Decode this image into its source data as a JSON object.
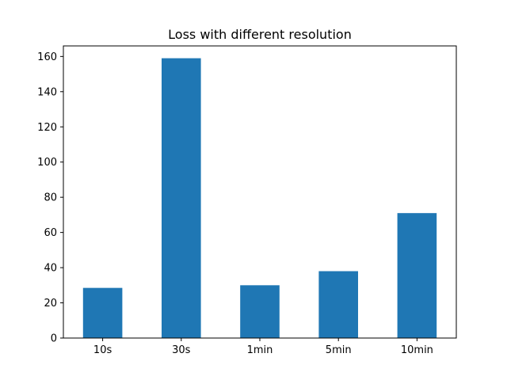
{
  "chart_data": {
    "type": "bar",
    "title": "Loss with different resolution",
    "categories": [
      "10s",
      "30s",
      "1min",
      "5min",
      "10min"
    ],
    "values": [
      28.5,
      159,
      30,
      38,
      71
    ],
    "xlabel": "",
    "ylabel": "",
    "ylim": [
      0,
      166
    ],
    "yticks": [
      0,
      20,
      40,
      60,
      80,
      100,
      120,
      140,
      160
    ],
    "grid": false,
    "bar_color": "#1f77b4"
  }
}
